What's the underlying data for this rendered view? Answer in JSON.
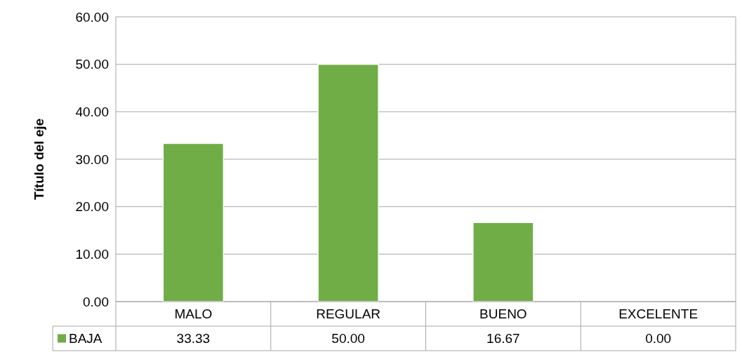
{
  "chart_data": {
    "type": "bar",
    "ylabel": "Título del eje",
    "categories": [
      "MALO",
      "REGULAR",
      "BUENO",
      "EXCELENTE"
    ],
    "series": [
      {
        "name": "BAJA",
        "color": "#70ad47",
        "values": [
          33.33,
          50.0,
          16.67,
          0.0
        ],
        "value_labels": [
          "33.33",
          "50.00",
          "16.67",
          "0.00"
        ]
      }
    ],
    "ylim": [
      0,
      60
    ],
    "yticks": [
      {
        "value": 0,
        "label": "0.00"
      },
      {
        "value": 10,
        "label": "10.00"
      },
      {
        "value": 20,
        "label": "20.00"
      },
      {
        "value": 30,
        "label": "30.00"
      },
      {
        "value": 40,
        "label": "40.00"
      },
      {
        "value": 50,
        "label": "50.00"
      },
      {
        "value": 60,
        "label": "60.00"
      }
    ],
    "grid": "y",
    "legend": "bottom"
  }
}
